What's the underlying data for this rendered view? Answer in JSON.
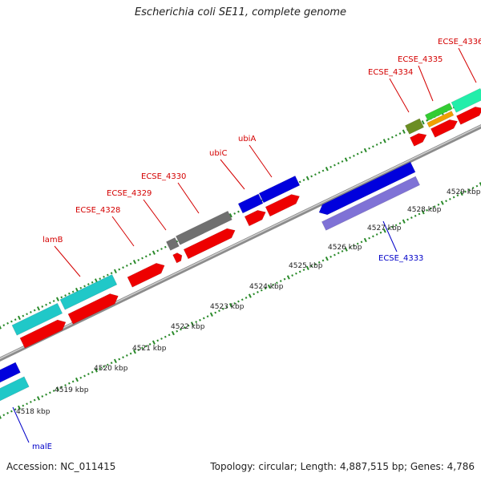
{
  "title": "Escherichia coli SE11, complete genome",
  "footer": {
    "accession": "Accession: NC_011415",
    "summary": "Topology: circular; Length: 4,887,515 bp; Genes: 4,786"
  },
  "scale": {
    "tick_labels": [
      "4518 kbp",
      "4519 kbp",
      "4520 kbp",
      "4521 kbp",
      "4522 kbp",
      "4523 kbp",
      "4524 kbp",
      "4525 kbp",
      "4526 kbp",
      "4527 kbp",
      "4528 kbp",
      "4529 kbp"
    ]
  },
  "gene_labels": [
    {
      "text": "ECSE_4336",
      "color": "#d40000"
    },
    {
      "text": "ECSE_4335",
      "color": "#d40000"
    },
    {
      "text": "ECSE_4334",
      "color": "#d40000"
    },
    {
      "text": "ubiA",
      "color": "#d40000"
    },
    {
      "text": "ubiC",
      "color": "#d40000"
    },
    {
      "text": "ECSE_4330",
      "color": "#d40000"
    },
    {
      "text": "ECSE_4329",
      "color": "#d40000"
    },
    {
      "text": "ECSE_4328",
      "color": "#d40000"
    },
    {
      "text": "lamB",
      "color": "#d40000"
    },
    {
      "text": "ECSE_4333",
      "color": "#0000c8"
    },
    {
      "text": "malE",
      "color": "#0000c8"
    }
  ],
  "feature_colors": {
    "cds": "#ee0000",
    "gene_blue": "#0000dd",
    "gene_cyan": "#20c8c8",
    "gene_gray": "#707070",
    "gene_purple": "#7f72d6",
    "gene_olive": "#6b8e23",
    "gene_green": "#33cc33",
    "gene_orange": "#f0a000",
    "gene_teal": "#22eeaa",
    "backbone": "#999999",
    "tick": "#2a8a2a"
  }
}
